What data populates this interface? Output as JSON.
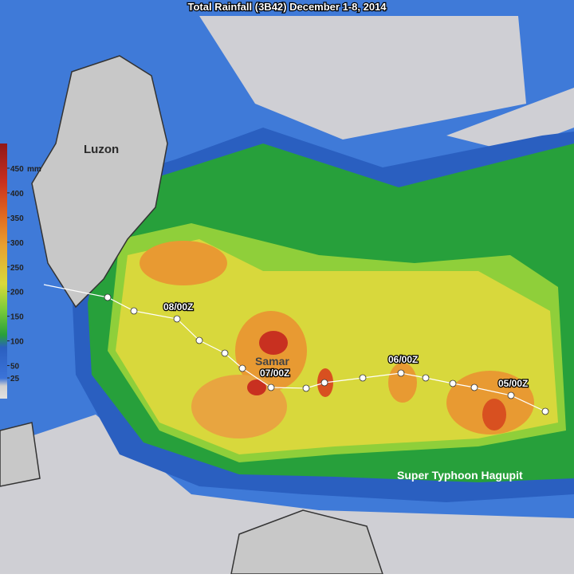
{
  "title": "Total Rainfall (3B42) December 1-8, 2014",
  "places": {
    "luzon": "Luzon",
    "samar": "Samar"
  },
  "track_labels": [
    "08/00Z",
    "07/00Z",
    "06/00Z",
    "05/00Z"
  ],
  "storm_name": "Super Typhoon Hagupit",
  "colorbar": {
    "unit": "mm",
    "ticks": [
      25,
      50,
      100,
      150,
      200,
      250,
      300,
      350,
      400,
      450
    ]
  }
}
